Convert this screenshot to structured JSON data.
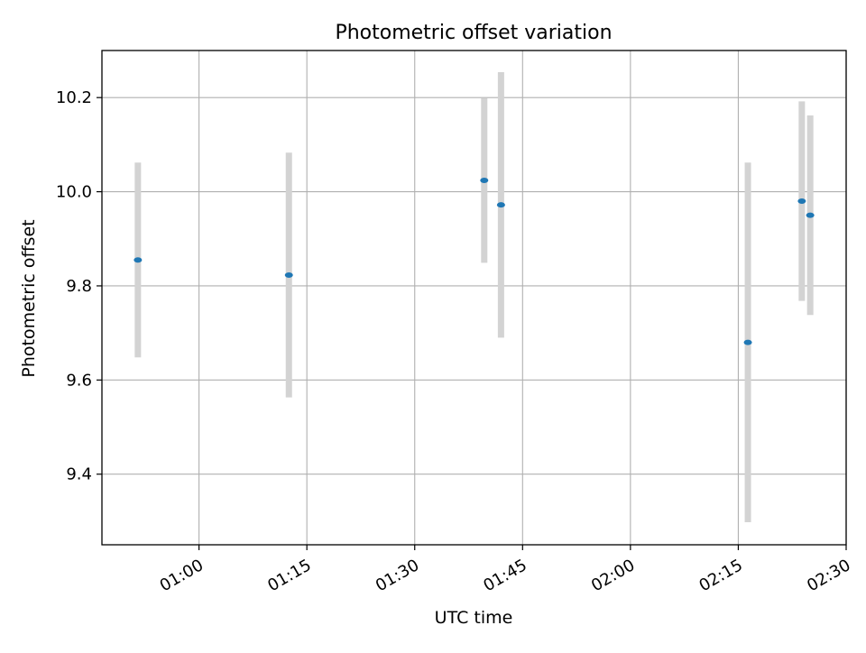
{
  "chart_data": {
    "type": "scatter",
    "title": "Photometric offset variation",
    "xlabel": "UTC time",
    "ylabel": "Photometric offset",
    "x_unit": "UTC time (HH:MM)",
    "xlim": [
      "00:46:30",
      "02:30:00"
    ],
    "ylim": [
      9.25,
      10.3
    ],
    "xticks": [
      "01:00",
      "01:15",
      "01:30",
      "01:45",
      "02:00",
      "02:15",
      "02:30"
    ],
    "yticks": [
      "9.4",
      "9.6",
      "9.8",
      "10.0",
      "10.2"
    ],
    "grid": true,
    "series": [
      {
        "points": [
          {
            "x": "00:51:30",
            "y": 9.855,
            "err": 0.207
          },
          {
            "x": "01:12:30",
            "y": 9.823,
            "err": 0.26
          },
          {
            "x": "01:39:40",
            "y": 10.024,
            "err": 0.175
          },
          {
            "x": "01:42:00",
            "y": 9.972,
            "err": 0.282
          },
          {
            "x": "02:16:20",
            "y": 9.68,
            "err": 0.382
          },
          {
            "x": "02:23:50",
            "y": 9.98,
            "err": 0.212
          },
          {
            "x": "02:25:00",
            "y": 9.95,
            "err": 0.212
          }
        ]
      }
    ],
    "colors": {
      "marker": "#1f77b4",
      "errorbar": "#d3d3d3",
      "grid": "#b0b0b0",
      "axes": "#000000"
    }
  }
}
